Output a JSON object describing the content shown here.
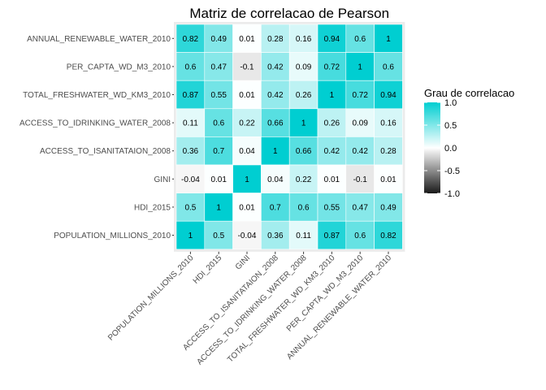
{
  "chart_data": {
    "type": "heatmap",
    "title": "Matriz de correlacao de Pearson",
    "xlabel": "",
    "ylabel": "",
    "x_categories": [
      "POPULATION_MILLIONS_2010",
      "HDI_2015",
      "GINI",
      "ACCESS_TO_ISANITATAION_2008",
      "ACCESS_TO_IDRINKING_WATER_2008",
      "TOTAL_FRESHWATER_WD_KM3_2010",
      "PER_CAPTA_WD_M3_2010",
      "ANNUAL_RENEWABLE_WATER_2010"
    ],
    "y_categories": [
      "ANNUAL_RENEWABLE_WATER_2010",
      "PER_CAPTA_WD_M3_2010",
      "TOTAL_FRESHWATER_WD_KM3_2010",
      "ACCESS_TO_IDRINKING_WATER_2008",
      "ACCESS_TO_ISANITATAION_2008",
      "GINI",
      "HDI_2015",
      "POPULATION_MILLIONS_2010"
    ],
    "values": [
      [
        0.82,
        0.49,
        0.01,
        0.28,
        0.16,
        0.94,
        0.6,
        1
      ],
      [
        0.6,
        0.47,
        -0.1,
        0.42,
        0.09,
        0.72,
        1,
        0.6
      ],
      [
        0.87,
        0.55,
        0.01,
        0.42,
        0.26,
        1,
        0.72,
        0.94
      ],
      [
        0.11,
        0.6,
        0.22,
        0.66,
        1,
        0.26,
        0.09,
        0.16
      ],
      [
        0.36,
        0.7,
        0.04,
        1,
        0.66,
        0.42,
        0.42,
        0.28
      ],
      [
        -0.04,
        0.01,
        1,
        0.04,
        0.22,
        0.01,
        -0.1,
        0.01
      ],
      [
        0.5,
        1,
        0.01,
        0.7,
        0.6,
        0.55,
        0.47,
        0.49
      ],
      [
        1,
        0.5,
        -0.04,
        0.36,
        0.11,
        0.87,
        0.6,
        0.82
      ]
    ],
    "legend": {
      "title": "Grau de correlacao",
      "ticks": [
        "1.0",
        "0.5",
        "0.0",
        "-0.5",
        "-1.0"
      ],
      "tick_values": [
        1.0,
        0.5,
        0.0,
        -0.5,
        -1.0
      ],
      "range": [
        -1,
        1
      ],
      "placement": "right"
    },
    "colors": {
      "high": "#00CED1",
      "mid": "#ffffff",
      "low": "#000000",
      "panel_background": "#ebebeb"
    }
  }
}
